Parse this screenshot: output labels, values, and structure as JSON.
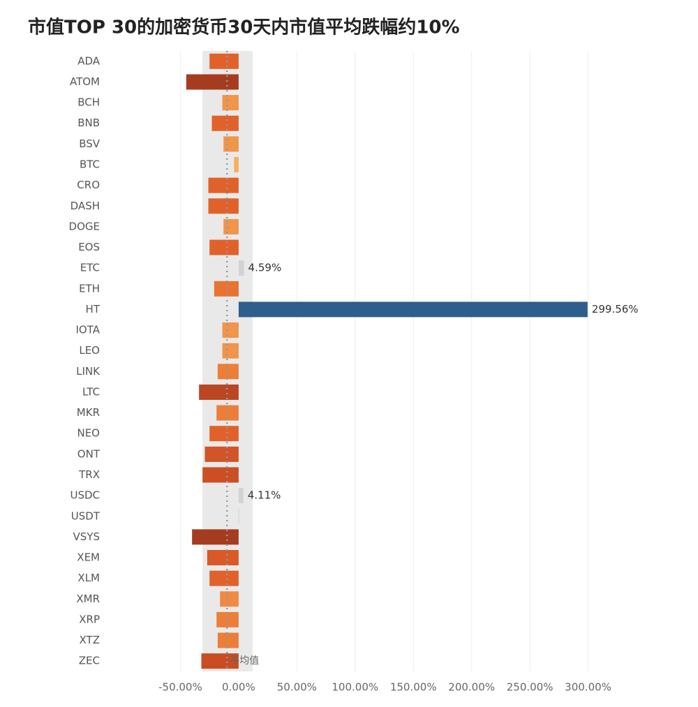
{
  "chart_data": {
    "type": "barh",
    "title": "市值TOP 30的加密货币30天内市值平均跌幅约10%",
    "categories": [
      "ADA",
      "ATOM",
      "BCH",
      "BNB",
      "BSV",
      "BTC",
      "CRO",
      "DASH",
      "DOGE",
      "EOS",
      "ETC",
      "ETH",
      "HT",
      "IOTA",
      "LEO",
      "LINK",
      "LTC",
      "MKR",
      "NEO",
      "ONT",
      "TRX",
      "USDC",
      "USDT",
      "VSYS",
      "XEM",
      "XLM",
      "XMR",
      "XRP",
      "XTZ",
      "ZEC"
    ],
    "values": [
      -25,
      -45,
      -14,
      -23,
      -13,
      -4,
      -26,
      -26,
      -13,
      -25,
      4.59,
      -21,
      299.56,
      -14,
      -14,
      -18,
      -34,
      -19,
      -25,
      -29,
      -31,
      4.11,
      -0.3,
      -40,
      -27,
      -25,
      -16,
      -19,
      -18,
      -32
    ],
    "value_labels": [
      null,
      null,
      null,
      null,
      null,
      null,
      null,
      null,
      null,
      null,
      "4.59%",
      null,
      "299.56%",
      null,
      null,
      null,
      null,
      null,
      null,
      null,
      null,
      "4.11%",
      null,
      null,
      null,
      null,
      null,
      null,
      null,
      null
    ],
    "colors": [
      "#e0622a",
      "#a63c1f",
      "#f0954a",
      "#e0622a",
      "#f0954a",
      "#f7b060",
      "#e0622a",
      "#e0622a",
      "#f0954a",
      "#e0622a",
      "#cfd3d2",
      "#e87333",
      "#2e5e8c",
      "#f0954a",
      "#f0954a",
      "#ec7f38",
      "#bb4622",
      "#ec7f38",
      "#e0622a",
      "#d35426",
      "#cc4f24",
      "#cfd3d2",
      "#d8dad9",
      "#a63c1f",
      "#d95a28",
      "#e0622a",
      "#f08a42",
      "#ec7f38",
      "#ec7f38",
      "#c94c23"
    ],
    "xlim": [
      -100,
      350
    ],
    "xticks": [
      {
        "value": -50,
        "label": "-50.00%"
      },
      {
        "value": 0,
        "label": "0.00%"
      },
      {
        "value": 50,
        "label": "50.00%"
      },
      {
        "value": 100,
        "label": "100.00%"
      },
      {
        "value": 150,
        "label": "150.00%"
      },
      {
        "value": 200,
        "label": "200.00%"
      },
      {
        "value": 250,
        "label": "250.00%"
      },
      {
        "value": 300,
        "label": "300.00%"
      }
    ],
    "grid": true,
    "average": -10,
    "average_label": "平均值",
    "reference_band": [
      -31,
      12
    ]
  }
}
